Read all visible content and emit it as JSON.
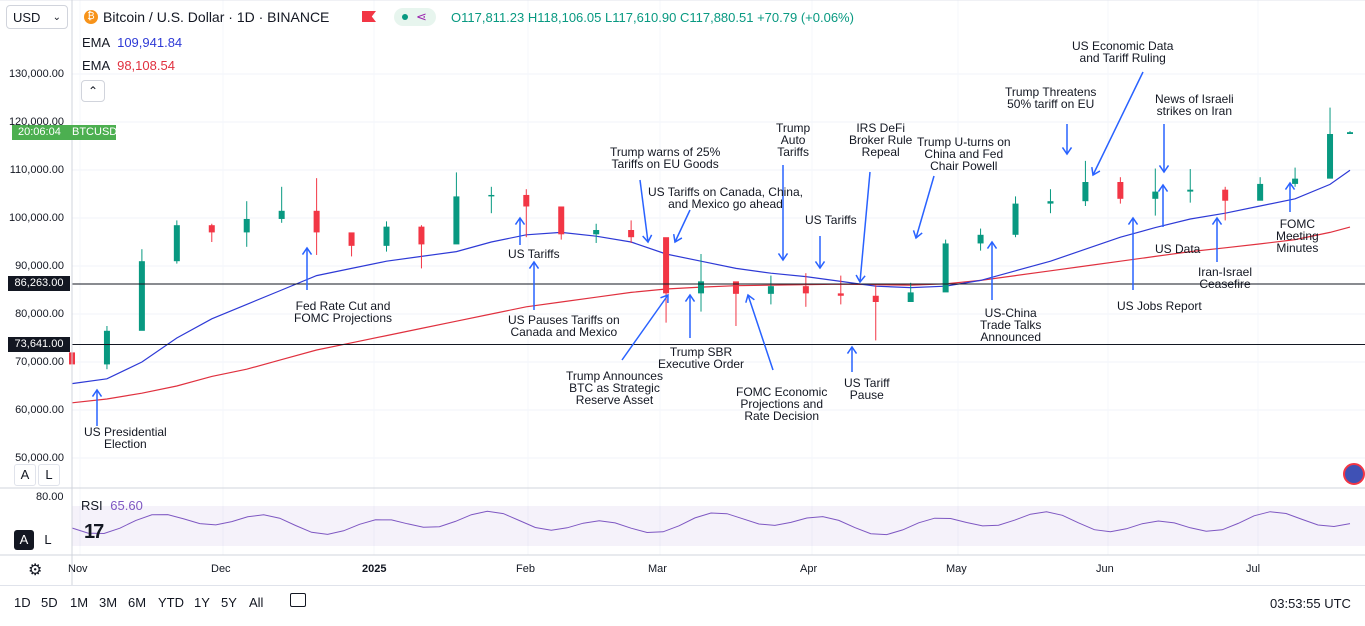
{
  "header": {
    "currency": "USD",
    "symbol_title": "Bitcoin / U.S. Dollar · 1D · BINANCE",
    "ohlc": {
      "o": "O117,811.23",
      "h": "H118,106.05",
      "l": "L117,610.90",
      "c": "C117,880.51",
      "change": "+70.79 (+0.06%)"
    }
  },
  "indicators": {
    "ema1_label": "EMA",
    "ema1_value": "109,941.84",
    "ema2_label": "EMA",
    "ema2_value": "98,108.54",
    "rsi_label": "RSI",
    "rsi_value": "65.60",
    "rsi_level": "80.00"
  },
  "price_axis": [
    "130,000.00",
    "120,000.00",
    "110,000.00",
    "100,000.00",
    "90,000.00",
    "80,000.00",
    "70,000.00",
    "60,000.00",
    "50,000.00"
  ],
  "time_axis": [
    "Nov",
    "Dec",
    "2025",
    "Feb",
    "Mar",
    "Apr",
    "May",
    "Jun",
    "Jul"
  ],
  "badges": {
    "countdown": "20:06:04",
    "ticker": "BTCUSD",
    "level1": "86,263.00",
    "level2": "73,641.00"
  },
  "annotations": [
    "US Presidential\nElection",
    "Fed Rate Cut and\nFOMC Projections",
    "US Pauses Tariffs on\nCanada and Mexico",
    "Trump Announces\nBTC as Strategic\nReserve Asset",
    "Trump warns of 25%\nTariffs on EU Goods",
    "US Tariffs on Canada, China,\nand Mexico go ahead",
    "US Tariffs",
    "Trump SBR\nExecutive Order",
    "FOMC Economic\nProjections and\nRate Decision",
    "Trump\nAuto\nTariffs",
    "US Tariffs",
    "IRS DeFi\nBroker Rule\nRepeal",
    "US Tariff\nPause",
    "Trump U-turns on\nChina and Fed\nChair Powell",
    "US-China\nTrade Talks\nAnnounced",
    "Trump Threatens\n50% tariff on EU",
    "US Economic Data\nand Tariff Ruling",
    "News of Israeli\nstrikes on Iran",
    "US Data",
    "US Jobs Report",
    "Iran-Israel\nCeasefire",
    "FOMC\nMeeting\nMinutes"
  ],
  "bottom": {
    "ranges": [
      "1D",
      "5D",
      "1M",
      "3M",
      "6M",
      "YTD",
      "1Y",
      "5Y",
      "All"
    ],
    "clock": "03:53:55 UTC"
  },
  "panel_buttons": {
    "a": "A",
    "l": "L"
  },
  "colors": {
    "up": "#089981",
    "down": "#f23645",
    "ema_fast": "#2e3ad6",
    "ema_slow": "#e0313f",
    "rsi": "#7e57c2",
    "arrow": "#2962ff",
    "badge_green": "#4caf50"
  },
  "chart_data": {
    "type": "candlestick",
    "title": "Bitcoin / U.S. Dollar · 1D · BINANCE",
    "ylim": [
      45000,
      135000
    ],
    "x": [
      "2024-11-01",
      "2024-11-08",
      "2024-11-15",
      "2024-11-22",
      "2024-11-29",
      "2024-12-06",
      "2024-12-13",
      "2024-12-20",
      "2024-12-27",
      "2025-01-03",
      "2025-01-10",
      "2025-01-17",
      "2025-01-24",
      "2025-01-31",
      "2025-02-07",
      "2025-02-14",
      "2025-02-21",
      "2025-02-28",
      "2025-03-07",
      "2025-03-14",
      "2025-03-21",
      "2025-03-28",
      "2025-04-04",
      "2025-04-11",
      "2025-04-18",
      "2025-04-25",
      "2025-05-02",
      "2025-05-09",
      "2025-05-16",
      "2025-05-23",
      "2025-05-30",
      "2025-06-06",
      "2025-06-13",
      "2025-06-20",
      "2025-06-27",
      "2025-07-04",
      "2025-07-11",
      "2025-07-15"
    ],
    "close": [
      69500,
      76500,
      91000,
      98500,
      97000,
      99800,
      101500,
      97000,
      94200,
      98200,
      94500,
      104500,
      104800,
      102400,
      96600,
      97500,
      96000,
      84300,
      86800,
      84200,
      85800,
      84300,
      83800,
      82500,
      84500,
      94700,
      96500,
      103000,
      103500,
      107500,
      104000,
      105500,
      105900,
      103600,
      107100,
      108200,
      117500,
      117880
    ],
    "high": [
      71500,
      77500,
      93500,
      99500,
      98800,
      103500,
      106500,
      108300,
      96800,
      99300,
      98500,
      109500,
      106500,
      106000,
      100500,
      98800,
      99500,
      94000,
      92500,
      86000,
      88000,
      88500,
      88000,
      86000,
      86500,
      95500,
      97800,
      104500,
      106000,
      111900,
      108500,
      110300,
      110200,
      106500,
      108500,
      110500,
      123000,
      118100
    ],
    "low": [
      68000,
      68500,
      86500,
      90500,
      95000,
      94000,
      99000,
      92300,
      92000,
      93000,
      89500,
      99000,
      101000,
      96000,
      95500,
      94800,
      94800,
      78200,
      80500,
      77500,
      82000,
      81500,
      82000,
      74500,
      82800,
      86500,
      93200,
      96000,
      101000,
      102500,
      103000,
      100500,
      103200,
      99500,
      104800,
      106500,
      111000,
      117600
    ],
    "series": [
      {
        "name": "EMA",
        "values": [
          65500,
          66500,
          70000,
          75000,
          79000,
          82000,
          85000,
          88000,
          89500,
          91000,
          92000,
          93000,
          95000,
          96500,
          97000,
          96200,
          95000,
          92500,
          91000,
          89500,
          88500,
          87800,
          86800,
          85800,
          85500,
          85800,
          87000,
          89000,
          91000,
          93500,
          96000,
          98000,
          99800,
          101000,
          102500,
          104000,
          107000,
          109942
        ]
      },
      {
        "name": "EMA",
        "values": [
          61500,
          62300,
          63500,
          65000,
          67000,
          68500,
          70500,
          72500,
          74000,
          75500,
          77000,
          78500,
          80000,
          81500,
          82500,
          83500,
          84500,
          85200,
          85600,
          85900,
          86000,
          86100,
          86200,
          86100,
          86000,
          86300,
          87000,
          88000,
          89000,
          90000,
          91000,
          92000,
          93000,
          93800,
          94600,
          95500,
          97000,
          98109
        ]
      }
    ]
  }
}
